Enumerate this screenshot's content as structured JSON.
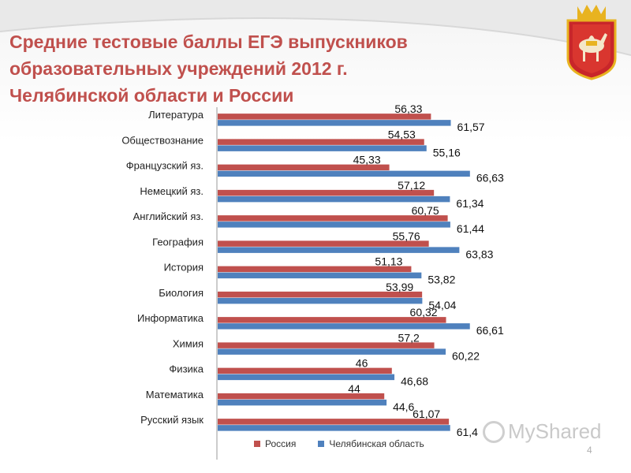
{
  "title": {
    "line1": "Средние тестовые баллы ЕГЭ выпускников",
    "line2": "образовательных учреждений 2012 г.",
    "line3": "Челябинской области и России"
  },
  "colors": {
    "title": "#c0504d",
    "russia": "#c0504d",
    "chelyabinsk": "#4f81bd"
  },
  "emblem": {
    "icon": "chelyabinsk-coat-of-arms-icon"
  },
  "watermark": {
    "text": "MyShared",
    "icon": "myshared-logo-icon"
  },
  "page_number": "4",
  "chart_data": {
    "type": "bar",
    "orientation": "horizontal",
    "categories": [
      "Литература",
      "Обществознание",
      "Французский яз.",
      "Немецкий яз.",
      "Английский яз.",
      "География",
      "История",
      "Биология",
      "Информатика",
      "Химия",
      "Физика",
      "Математика",
      "Русский язык"
    ],
    "series": [
      {
        "name": "Россия",
        "color": "#c0504d",
        "values": [
          56.33,
          54.53,
          45.33,
          57.12,
          60.75,
          55.76,
          51.13,
          53.99,
          60.32,
          57.2,
          46,
          44,
          61.07
        ],
        "labels": [
          "56,33",
          "54,53",
          "45,33",
          "57,12",
          "60,75",
          "55,76",
          "51,13",
          "53,99",
          "60,32",
          "57,2",
          "46",
          "44",
          "61,07"
        ]
      },
      {
        "name": "Челябинская область",
        "color": "#4f81bd",
        "values": [
          61.57,
          55.16,
          66.63,
          61.34,
          61.44,
          63.83,
          53.82,
          54.04,
          66.61,
          60.22,
          46.68,
          44.6,
          61.4
        ],
        "labels": [
          "61,57",
          "55,16",
          "66,63",
          "61,34",
          "61,44",
          "63,83",
          "53,82",
          "54,04",
          "66,61",
          "60,22",
          "46,68",
          "44,6",
          "61,4"
        ]
      }
    ],
    "xlim": [
      0,
      70
    ],
    "legend_position": "bottom",
    "grid": false
  }
}
